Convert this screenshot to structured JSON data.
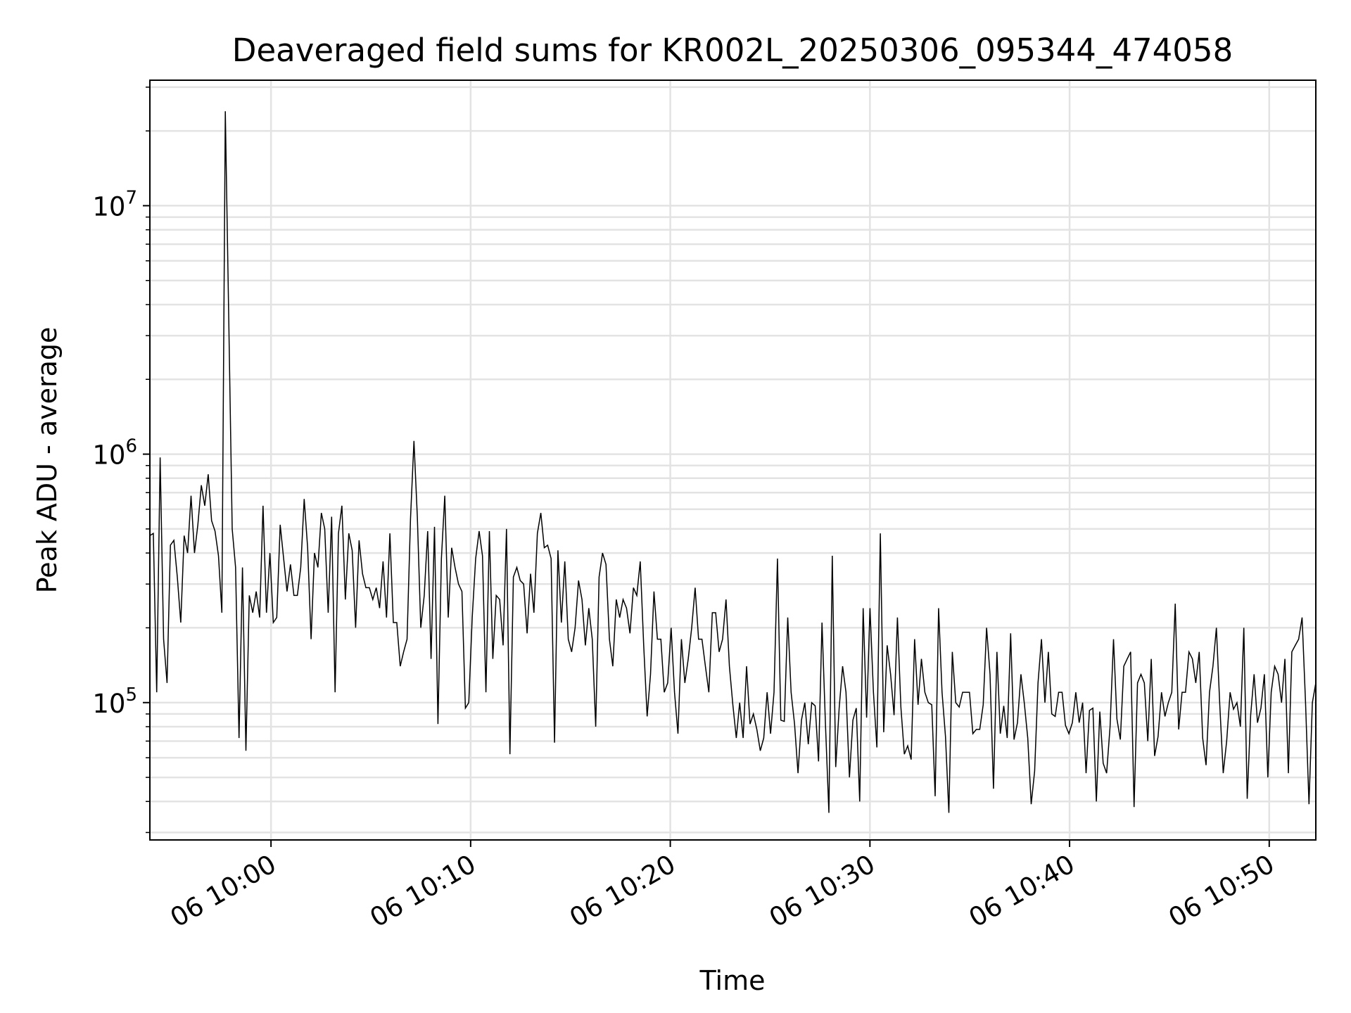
{
  "chart_data": {
    "type": "line",
    "title": "Deaveraged field sums for KR002L_20250306_095344_474058",
    "xlabel": "Time",
    "ylabel": "Peak ADU - average",
    "x_scale": "time",
    "y_scale": "log",
    "x_range": [
      "2025-03-06 09:53:56",
      "2025-03-06 10:52:20"
    ],
    "y_range": [
      28000,
      32000000
    ],
    "x_ticks": [
      {
        "time": "2025-03-06 10:00",
        "label": "06 10:00"
      },
      {
        "time": "2025-03-06 10:10",
        "label": "06 10:10"
      },
      {
        "time": "2025-03-06 10:20",
        "label": "06 10:20"
      },
      {
        "time": "2025-03-06 10:30",
        "label": "06 10:30"
      },
      {
        "time": "2025-03-06 10:40",
        "label": "06 10:40"
      },
      {
        "time": "2025-03-06 10:50",
        "label": "06 10:50"
      }
    ],
    "y_ticks": [
      {
        "value": 100000,
        "base": "10",
        "exp": "5"
      },
      {
        "value": 1000000,
        "base": "10",
        "exp": "6"
      },
      {
        "value": 10000000,
        "base": "10",
        "exp": "7"
      }
    ],
    "grid": true,
    "legend": "none",
    "line_color": "#000000",
    "series": [
      {
        "x_start": "2025-03-06 09:53:56",
        "x_end": "2025-03-06 10:52:20",
        "values": [
          470000,
          480000,
          110000,
          970000,
          180000,
          120000,
          430000,
          450000,
          320000,
          210000,
          470000,
          400000,
          680000,
          400000,
          520000,
          750000,
          620000,
          830000,
          540000,
          490000,
          390000,
          230000,
          24000000,
          3500000,
          500000,
          350000,
          72000,
          350000,
          64000,
          270000,
          230000,
          280000,
          220000,
          620000,
          230000,
          400000,
          210000,
          220000,
          520000,
          380000,
          280000,
          360000,
          270000,
          270000,
          350000,
          660000,
          420000,
          180000,
          400000,
          350000,
          580000,
          500000,
          230000,
          560000,
          110000,
          480000,
          620000,
          260000,
          480000,
          410000,
          200000,
          450000,
          330000,
          290000,
          290000,
          260000,
          290000,
          240000,
          370000,
          220000,
          480000,
          210000,
          210000,
          140000,
          160000,
          180000,
          550000,
          1130000,
          560000,
          200000,
          270000,
          490000,
          150000,
          510000,
          82000,
          380000,
          680000,
          220000,
          420000,
          350000,
          300000,
          280000,
          95000,
          100000,
          220000,
          380000,
          490000,
          390000,
          110000,
          490000,
          150000,
          270000,
          260000,
          170000,
          500000,
          62000,
          320000,
          350000,
          310000,
          300000,
          190000,
          330000,
          230000,
          480000,
          580000,
          420000,
          430000,
          380000,
          69000,
          410000,
          210000,
          370000,
          180000,
          160000,
          200000,
          310000,
          260000,
          170000,
          240000,
          180000,
          80000,
          320000,
          400000,
          360000,
          180000,
          140000,
          260000,
          220000,
          260000,
          240000,
          190000,
          290000,
          270000,
          370000,
          170000,
          88000,
          130000,
          280000,
          180000,
          180000,
          110000,
          120000,
          200000,
          110000,
          75000,
          180000,
          120000,
          150000,
          200000,
          290000,
          180000,
          180000,
          140000,
          110000,
          230000,
          230000,
          160000,
          180000,
          260000,
          140000,
          98000,
          72000,
          100000,
          72000,
          140000,
          82000,
          90000,
          78000,
          64000,
          72000,
          110000,
          75000,
          110000,
          380000,
          85000,
          84000,
          220000,
          110000,
          82000,
          52000,
          85000,
          100000,
          68000,
          100000,
          97000,
          58000,
          210000,
          82000,
          36000,
          390000,
          55000,
          95000,
          140000,
          110000,
          50000,
          85000,
          95000,
          40000,
          240000,
          87000,
          240000,
          110000,
          66000,
          480000,
          76000,
          170000,
          130000,
          89000,
          220000,
          96000,
          62000,
          67000,
          59000,
          180000,
          98000,
          150000,
          110000,
          100000,
          98000,
          42000,
          240000,
          110000,
          73000,
          36000,
          160000,
          100000,
          96000,
          110000,
          110000,
          110000,
          75000,
          78000,
          78000,
          98000,
          200000,
          130000,
          45000,
          160000,
          75000,
          97000,
          72000,
          190000,
          71000,
          83000,
          130000,
          99000,
          72000,
          39000,
          53000,
          120000,
          180000,
          100000,
          160000,
          90000,
          88000,
          110000,
          110000,
          81000,
          75000,
          83000,
          110000,
          83000,
          100000,
          52000,
          93000,
          95000,
          40000,
          92000,
          57000,
          52000,
          80000,
          180000,
          86000,
          71000,
          140000,
          150000,
          160000,
          38000,
          120000,
          130000,
          120000,
          70000,
          150000,
          61000,
          73000,
          110000,
          88000,
          100000,
          110000,
          250000,
          78000,
          110000,
          110000,
          160000,
          150000,
          120000,
          160000,
          72000,
          56000,
          110000,
          140000,
          200000,
          98000,
          52000,
          70000,
          110000,
          94000,
          100000,
          80000,
          200000,
          41000,
          89000,
          130000,
          83000,
          95000,
          130000,
          50000,
          110000,
          140000,
          130000,
          100000,
          150000,
          52000,
          160000,
          170000,
          180000,
          220000,
          100000,
          39000,
          100000,
          120000
        ]
      }
    ]
  }
}
